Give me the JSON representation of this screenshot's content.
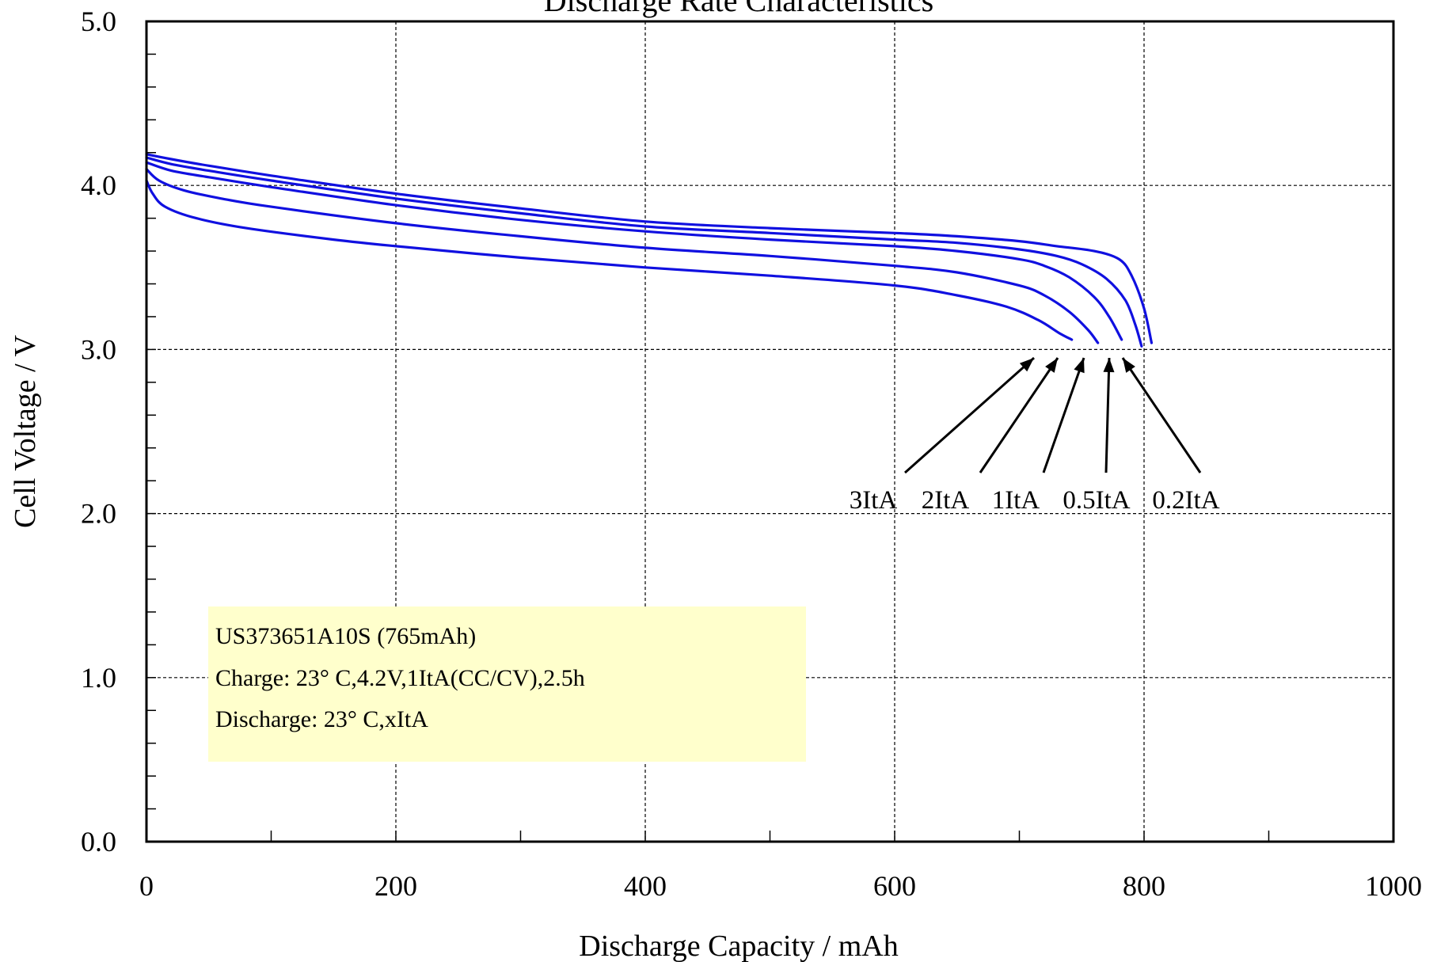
{
  "chart_data": {
    "type": "line",
    "title": "Discharge Rate Characteristics",
    "xlabel": "Discharge Capacity / mAh",
    "ylabel": "Cell Voltage / V",
    "xlim": [
      0,
      1000
    ],
    "ylim": [
      0,
      5
    ],
    "x_ticks": [
      "0",
      "200",
      "400",
      "600",
      "800",
      "1000"
    ],
    "y_ticks": [
      "0.0",
      "1.0",
      "2.0",
      "3.0",
      "4.0",
      "5.0"
    ],
    "grid": true,
    "series": [
      {
        "name": "0.2ItA",
        "x": [
          0,
          20,
          50,
          100,
          200,
          300,
          400,
          500,
          600,
          650,
          700,
          730,
          760,
          780,
          790,
          800,
          806
        ],
        "y": [
          4.19,
          4.16,
          4.12,
          4.06,
          3.95,
          3.86,
          3.78,
          3.74,
          3.71,
          3.69,
          3.66,
          3.63,
          3.6,
          3.55,
          3.45,
          3.25,
          3.04
        ]
      },
      {
        "name": "0.5ItA",
        "x": [
          0,
          20,
          50,
          100,
          200,
          300,
          400,
          500,
          600,
          650,
          700,
          730,
          750,
          770,
          785,
          793,
          798
        ],
        "y": [
          4.17,
          4.13,
          4.09,
          4.03,
          3.92,
          3.83,
          3.75,
          3.71,
          3.67,
          3.65,
          3.61,
          3.57,
          3.52,
          3.43,
          3.3,
          3.15,
          3.02
        ]
      },
      {
        "name": "1ItA",
        "x": [
          0,
          20,
          50,
          100,
          200,
          300,
          400,
          500,
          600,
          650,
          700,
          720,
          740,
          760,
          772,
          782
        ],
        "y": [
          4.14,
          4.09,
          4.05,
          3.99,
          3.88,
          3.79,
          3.72,
          3.67,
          3.63,
          3.6,
          3.55,
          3.51,
          3.44,
          3.32,
          3.2,
          3.06
        ]
      },
      {
        "name": "2ItA",
        "x": [
          0,
          10,
          30,
          60,
          100,
          200,
          300,
          400,
          500,
          600,
          650,
          700,
          720,
          740,
          755,
          763
        ],
        "y": [
          4.1,
          4.03,
          3.97,
          3.92,
          3.87,
          3.77,
          3.69,
          3.62,
          3.57,
          3.51,
          3.47,
          3.39,
          3.33,
          3.23,
          3.12,
          3.04
        ]
      },
      {
        "name": "3ItA",
        "x": [
          0,
          5,
          15,
          40,
          80,
          150,
          200,
          300,
          400,
          500,
          600,
          650,
          690,
          715,
          732,
          742
        ],
        "y": [
          4.03,
          3.95,
          3.87,
          3.8,
          3.74,
          3.67,
          3.63,
          3.56,
          3.5,
          3.45,
          3.39,
          3.33,
          3.26,
          3.18,
          3.1,
          3.06
        ]
      }
    ],
    "rate_labels": [
      "3ItA",
      "2ItA",
      "1ItA",
      "0.5ItA",
      "0.2ItA"
    ],
    "annotation_lines": [
      "US373651A10S (765mAh)",
      "Charge:  23°  C,4.2V,1ItA(CC/CV),2.5h",
      "Discharge:  23°  C,xItA"
    ],
    "colors": {
      "curve": "#1010e0",
      "note_background": "#ffffcc"
    }
  }
}
